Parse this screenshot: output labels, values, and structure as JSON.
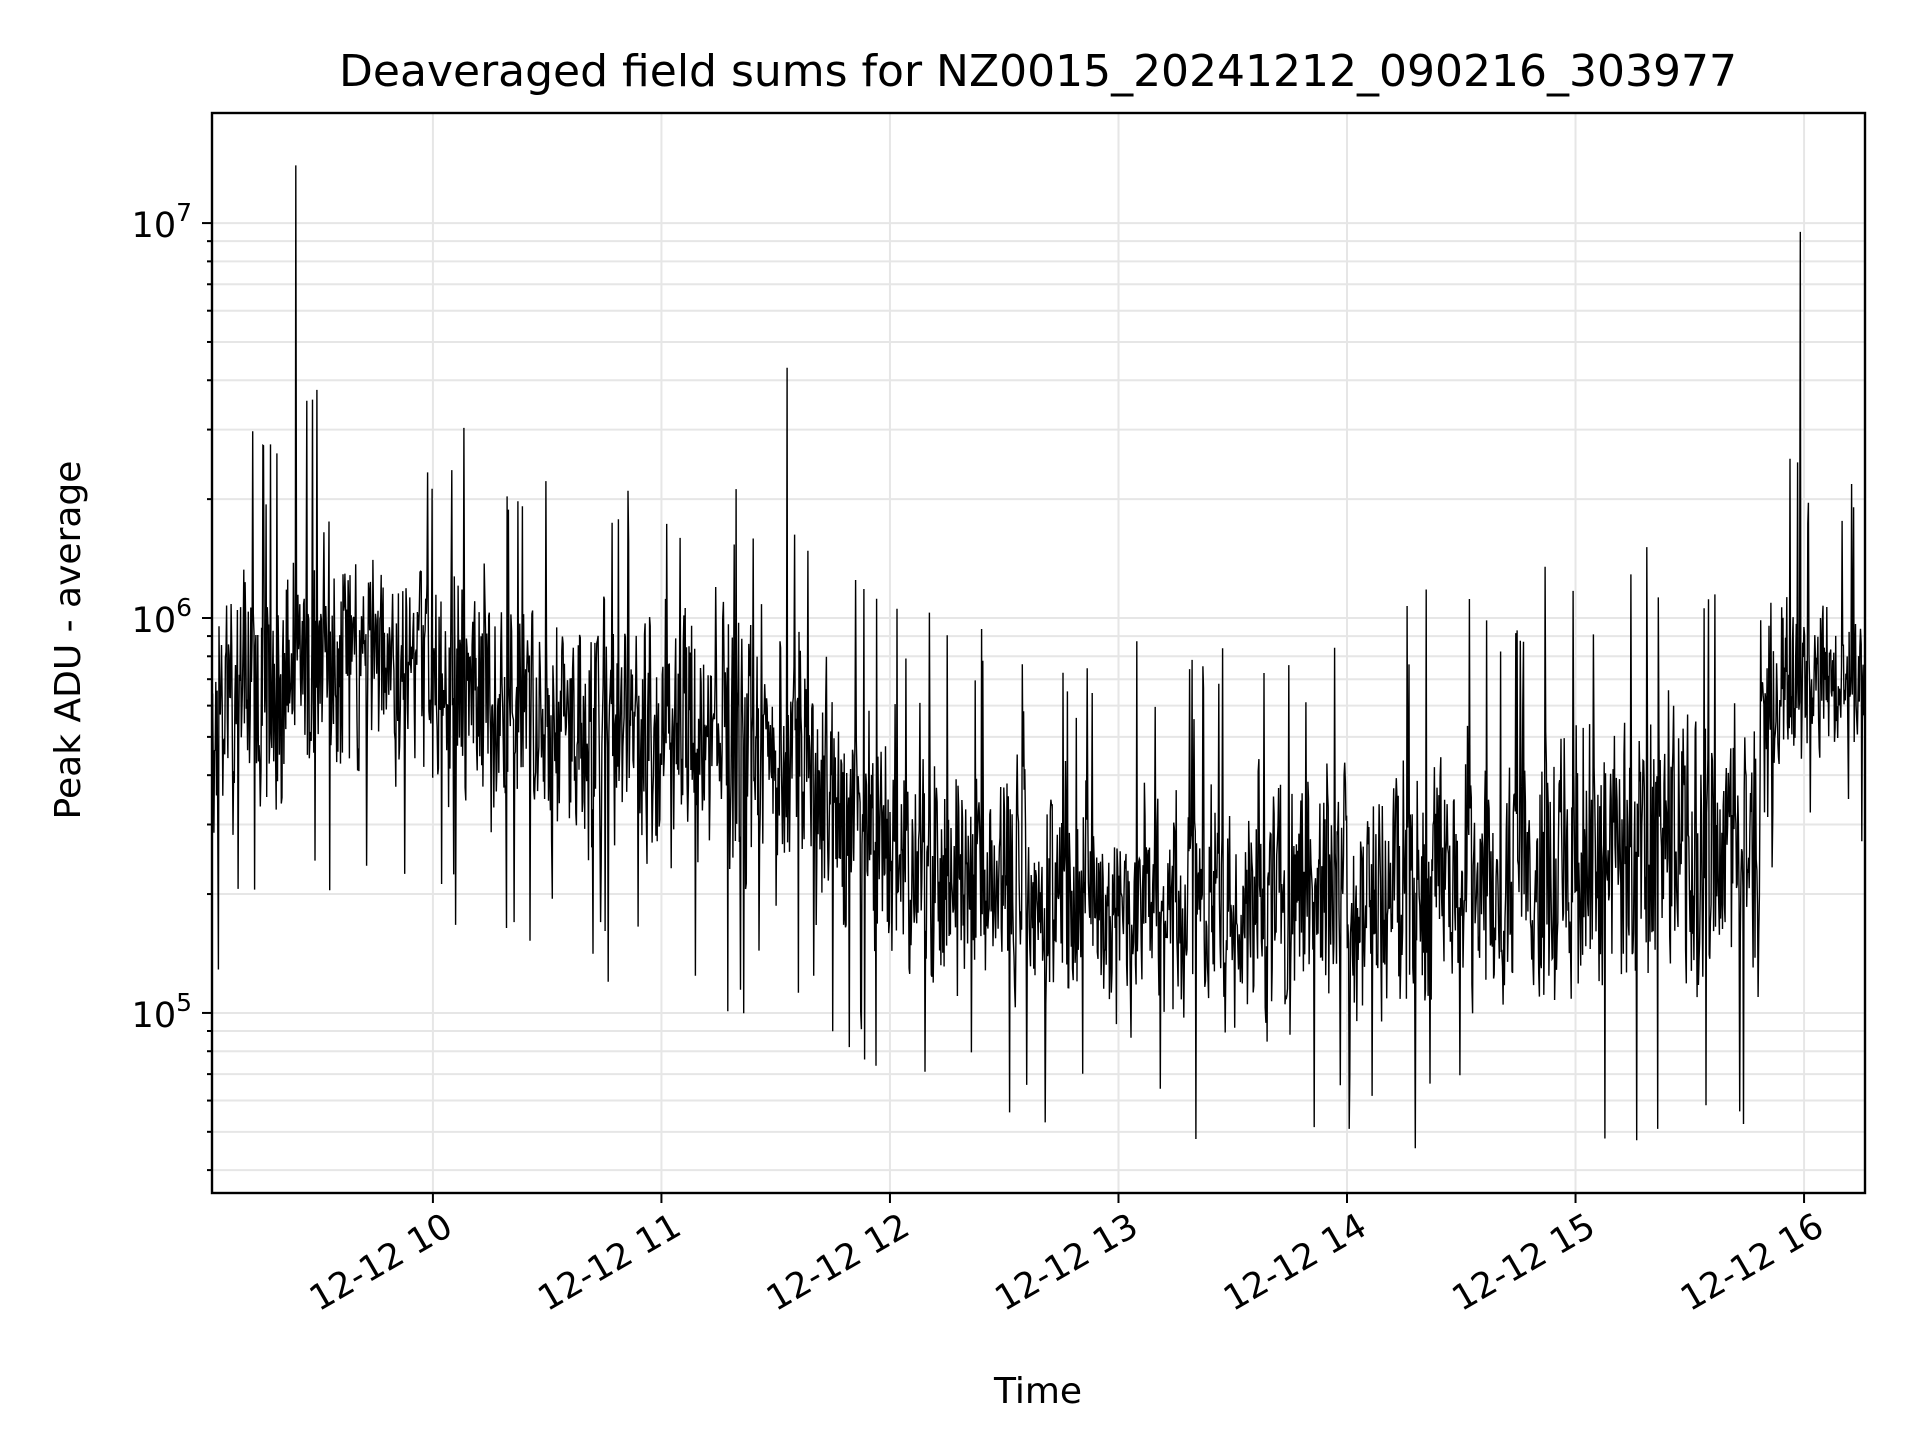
{
  "chart_data": {
    "type": "line",
    "title": "Deaveraged field sums for NZ0015_20241212_090216_303977",
    "xlabel": "Time",
    "ylabel": "Peak ADU - average",
    "yscale": "log",
    "ylim": [
      35000,
      19000000
    ],
    "xlim": [
      "2024-12-12 09:02",
      "2024-12-12 16:16"
    ],
    "x_ticks": [
      {
        "value": "2024-12-12 10:00",
        "label": "12-12 10"
      },
      {
        "value": "2024-12-12 11:00",
        "label": "12-12 11"
      },
      {
        "value": "2024-12-12 12:00",
        "label": "12-12 12"
      },
      {
        "value": "2024-12-12 13:00",
        "label": "12-12 13"
      },
      {
        "value": "2024-12-12 14:00",
        "label": "12-12 14"
      },
      {
        "value": "2024-12-12 15:00",
        "label": "12-12 15"
      },
      {
        "value": "2024-12-12 16:00",
        "label": "12-12 16"
      }
    ],
    "y_ticks": [
      {
        "value": 100000,
        "base": "10",
        "exp": "5"
      },
      {
        "value": 1000000,
        "base": "10",
        "exp": "6"
      },
      {
        "value": 10000000,
        "base": "10",
        "exp": "7"
      }
    ],
    "grid": true,
    "grid_minor": true,
    "line_color": "#000000",
    "series": [
      {
        "x": [
          "2024-12-12 09:02",
          "2024-12-12 09:14",
          "2024-12-12 09:22",
          "2024-12-12 09:24",
          "2024-12-12 09:36",
          "2024-12-12 09:50",
          "2024-12-12 10:10",
          "2024-12-12 10:30",
          "2024-12-12 10:42",
          "2024-12-12 11:00",
          "2024-12-12 11:20",
          "2024-12-12 11:33",
          "2024-12-12 11:50",
          "2024-12-12 12:00",
          "2024-12-12 12:20",
          "2024-12-12 12:40",
          "2024-12-12 12:50",
          "2024-12-12 13:00",
          "2024-12-12 13:20",
          "2024-12-12 13:40",
          "2024-12-12 14:00",
          "2024-12-12 14:20",
          "2024-12-12 14:40",
          "2024-12-12 15:00",
          "2024-12-12 15:20",
          "2024-12-12 15:35",
          "2024-12-12 15:50",
          "2024-12-12 15:59",
          "2024-12-12 16:05",
          "2024-12-12 16:16"
        ],
        "y": [
          600000,
          600000,
          900000,
          14000000,
          1000000,
          500000,
          450000,
          550000,
          500000,
          450000,
          350000,
          4300000,
          400000,
          250000,
          150000,
          100000,
          110000,
          100000,
          110000,
          100000,
          100000,
          100000,
          100000,
          120000,
          110000,
          110000,
          600000,
          9500000,
          550000,
          500000
        ],
        "noise_envelope": [
          {
            "x": "2024-12-12 09:02",
            "low": 200000,
            "high": 1500000
          },
          {
            "x": "2024-12-12 09:40",
            "low": 300000,
            "high": 2500000
          },
          {
            "x": "2024-12-12 10:30",
            "low": 200000,
            "high": 1500000
          },
          {
            "x": "2024-12-12 11:30",
            "low": 150000,
            "high": 1500000
          },
          {
            "x": "2024-12-12 12:00",
            "low": 90000,
            "high": 600000
          },
          {
            "x": "2024-12-12 13:00",
            "low": 70000,
            "high": 500000
          },
          {
            "x": "2024-12-12 14:00",
            "low": 70000,
            "high": 600000
          },
          {
            "x": "2024-12-12 15:00",
            "low": 70000,
            "high": 900000
          },
          {
            "x": "2024-12-12 15:48",
            "low": 80000,
            "high": 900000
          },
          {
            "x": "2024-12-12 15:52",
            "low": 350000,
            "high": 1500000
          },
          {
            "x": "2024-12-12 16:16",
            "low": 400000,
            "high": 1200000
          }
        ]
      }
    ]
  }
}
